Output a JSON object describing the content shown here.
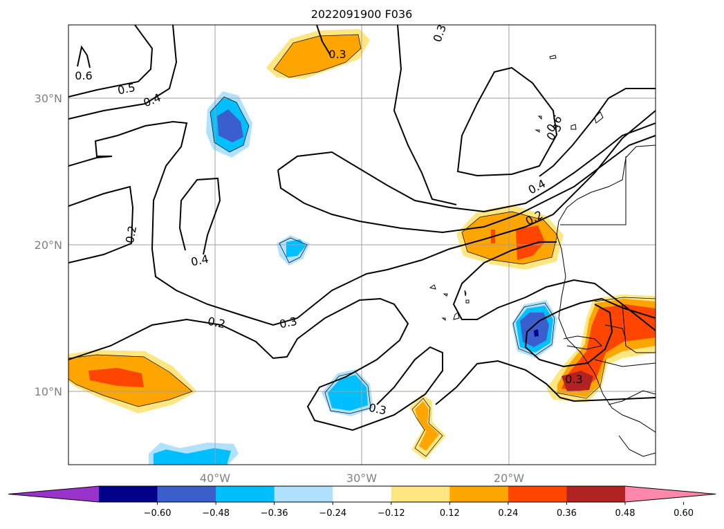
{
  "title": "2022091900 F036",
  "map": {
    "projection": "cylindrical",
    "lon_range": [
      -50,
      -10
    ],
    "lat_range": [
      5,
      35
    ],
    "gridlines": true,
    "lon_labels": [
      "40°W",
      "30°W",
      "20°W"
    ],
    "lat_labels": [
      "30°N",
      "20°N",
      "10°N"
    ],
    "contour_labels": [
      "0.6",
      "0.5",
      "0.4",
      "0.2",
      "0.4",
      "0.3",
      "0.2",
      "0.3",
      "0.3",
      "0.4",
      "0.2",
      "0.3",
      "0.3",
      "0.5",
      "0.6"
    ]
  },
  "colorbar": {
    "ticks": [
      "−0.60",
      "−0.48",
      "−0.36",
      "−0.24",
      "−0.12",
      "0.12",
      "0.24",
      "0.36",
      "0.48",
      "0.60"
    ],
    "colors": [
      "#9933cc",
      "#00008b",
      "#3a5fcd",
      "#00bfff",
      "#b0e2ff",
      "#ffffff",
      "#ffe680",
      "#ffa500",
      "#ff4500",
      "#b22222",
      "#ff88aa"
    ],
    "extend": "both"
  }
}
